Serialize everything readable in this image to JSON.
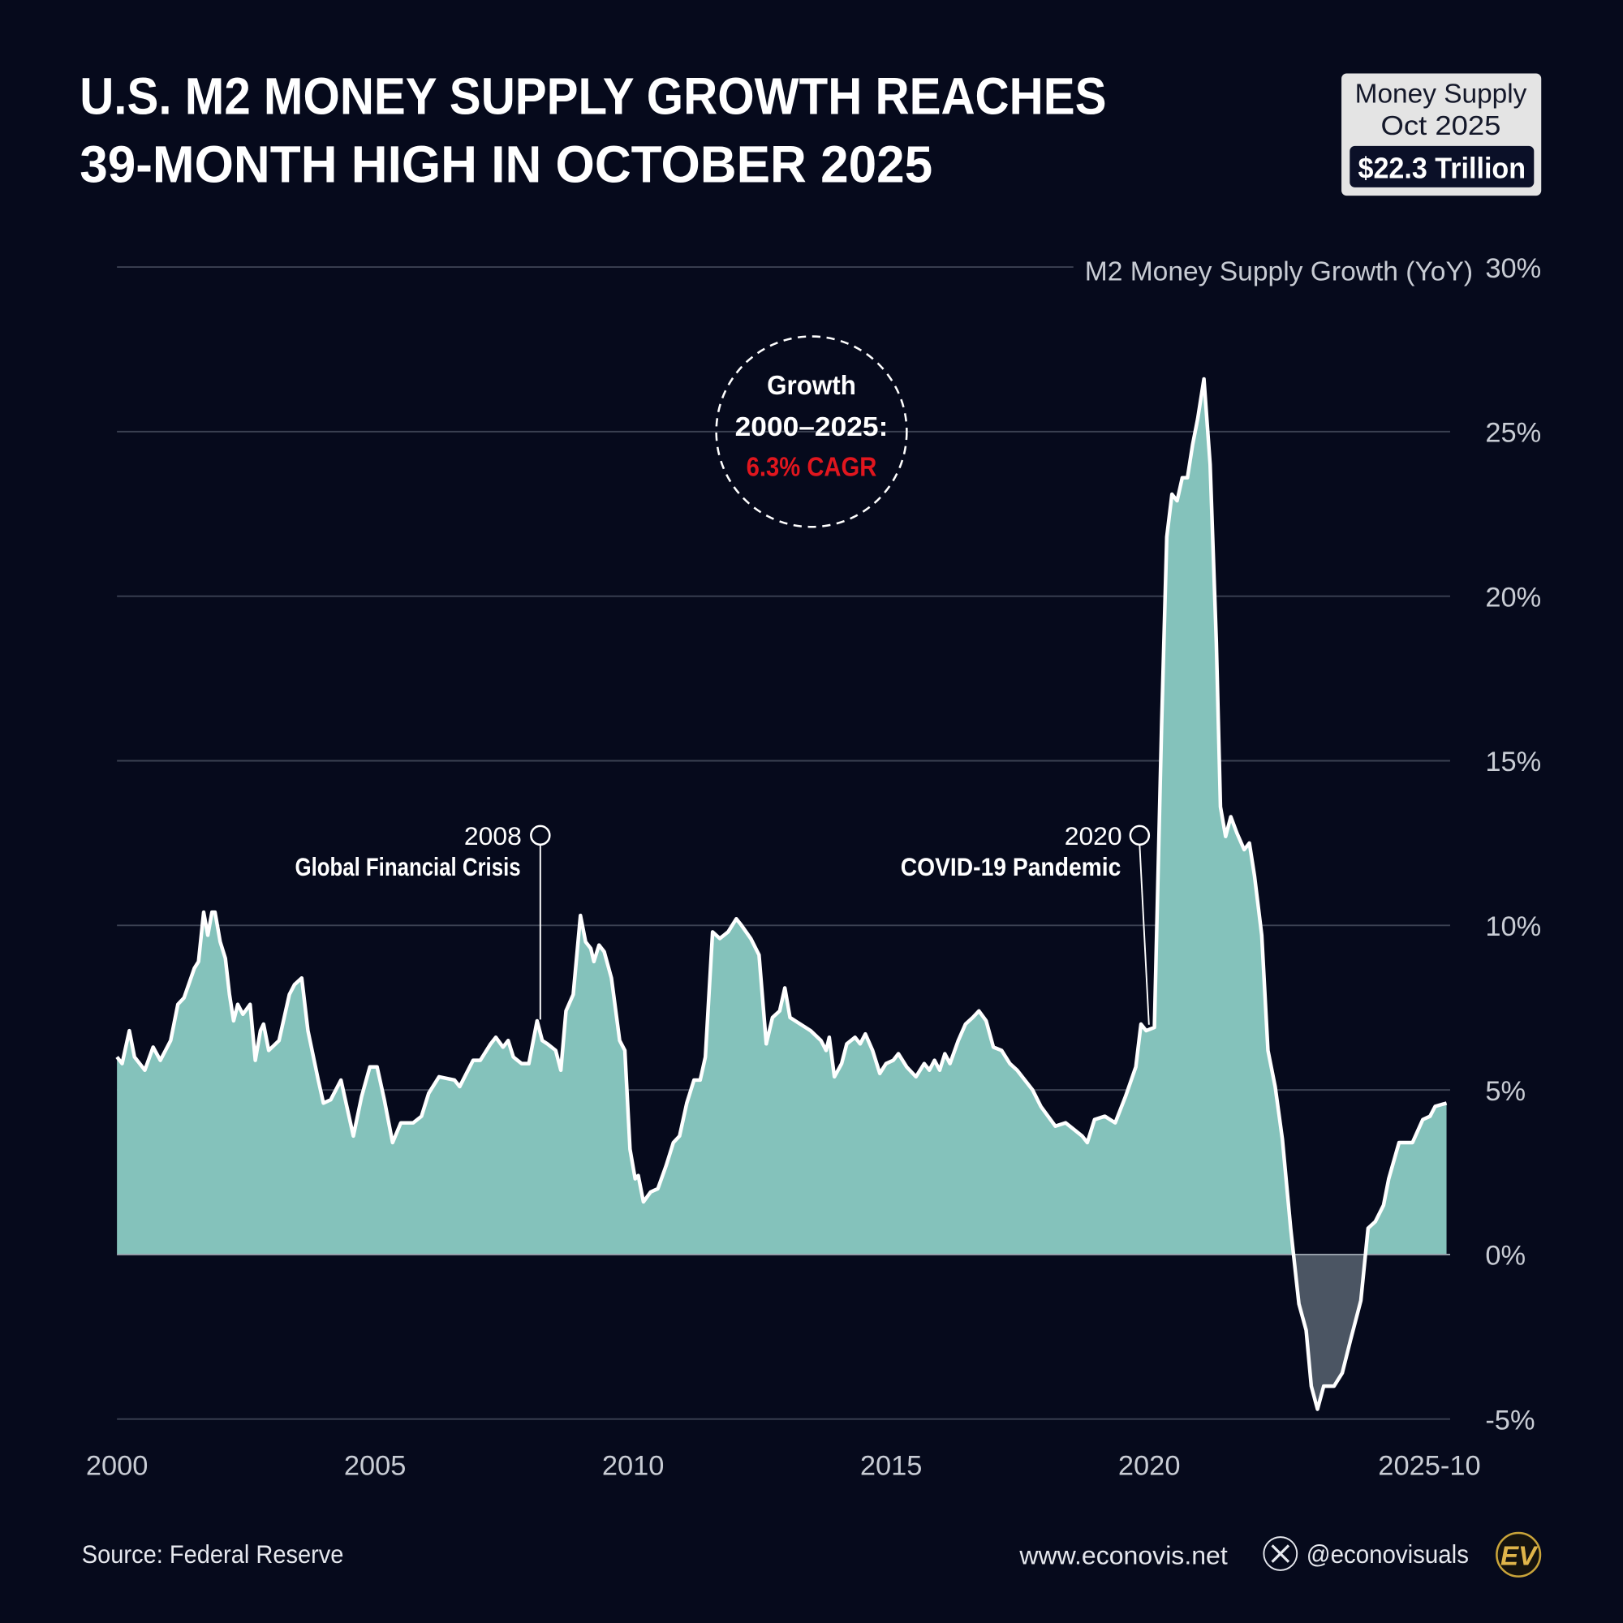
{
  "chart_data": {
    "type": "area",
    "title": [
      "U.S. M2 MONEY SUPPLY GROWTH REACHES",
      "39-MONTH HIGH IN OCTOBER 2025"
    ],
    "badge": {
      "lines": [
        "Money Supply",
        "Oct 2025"
      ],
      "value": "$22.3 Trillion"
    },
    "y_label": "M2 Money Supply Growth (YoY)",
    "cagr_note": {
      "lines": [
        "Growth",
        "2000–2025:"
      ],
      "highlight": "6.3% CAGR"
    },
    "annotations": [
      {
        "label": "2008",
        "text": "Global Financial Crisis"
      },
      {
        "label": "2020",
        "text": "COVID-19 Pandemic"
      }
    ],
    "source": "Source: Federal Reserve",
    "website": "www.econovis.net",
    "handle": "@econovisuals",
    "logo": "EV",
    "color": "#84c2bb",
    "negative_color": "#4b5563",
    "line_color": "#ffffff",
    "grid": true,
    "xlim": [
      2000,
      2025.83
    ],
    "xticks": [
      2000,
      2005,
      2010,
      2015,
      2020,
      {
        "value": 2025.83,
        "label": "2025-10"
      }
    ],
    "ylim": [
      -5,
      30
    ],
    "yticks": [
      {
        "value": -5,
        "label": "-5%"
      },
      {
        "value": 0,
        "label": "0%"
      },
      {
        "value": 5,
        "label": "5%"
      },
      {
        "value": 10,
        "label": "10%"
      },
      {
        "value": 15,
        "label": "15%"
      },
      {
        "value": 20,
        "label": "20%"
      },
      {
        "value": 25,
        "label": "25%"
      },
      {
        "value": 30,
        "label": "30%"
      }
    ],
    "x": [
      2000,
      2000.1,
      2000.24,
      2000.34,
      2000.54,
      2000.7,
      2000.84,
      2001.04,
      2001.18,
      2001.3,
      2001.5,
      2001.58,
      2001.68,
      2001.76,
      2001.84,
      2001.9,
      2002,
      2002.1,
      2002.18,
      2002.26,
      2002.34,
      2002.44,
      2002.58,
      2002.68,
      2002.78,
      2002.84,
      2002.94,
      2003.14,
      2003.34,
      2003.44,
      2003.58,
      2003.7,
      2003.9,
      2004,
      2004.14,
      2004.34,
      2004.58,
      2004.74,
      2004.9,
      2005.04,
      2005.18,
      2005.34,
      2005.5,
      2005.74,
      2005.9,
      2006.04,
      2006.24,
      2006.54,
      2006.64,
      2006.9,
      2007.04,
      2007.24,
      2007.34,
      2007.48,
      2007.58,
      2007.68,
      2007.84,
      2007.98,
      2008.14,
      2008.24,
      2008.34,
      2008.5,
      2008.6,
      2008.7,
      2008.84,
      2008.98,
      2009.08,
      2009.18,
      2009.24,
      2009.34,
      2009.44,
      2009.58,
      2009.74,
      2009.84,
      2009.94,
      2010.04,
      2010.1,
      2010.2,
      2010.34,
      2010.48,
      2010.64,
      2010.78,
      2010.9,
      2011.04,
      2011.18,
      2011.3,
      2011.4,
      2011.54,
      2011.68,
      2011.84,
      2012,
      2012.1,
      2012.28,
      2012.44,
      2012.58,
      2012.7,
      2012.84,
      2012.94,
      2013.04,
      2013.24,
      2013.44,
      2013.64,
      2013.74,
      2013.8,
      2013.9,
      2014.04,
      2014.14,
      2014.3,
      2014.4,
      2014.5,
      2014.64,
      2014.78,
      2014.9,
      2015.04,
      2015.14,
      2015.3,
      2015.48,
      2015.64,
      2015.74,
      2015.84,
      2015.94,
      2016.04,
      2016.14,
      2016.3,
      2016.44,
      2016.58,
      2016.7,
      2016.84,
      2016.98,
      2017.14,
      2017.3,
      2017.44,
      2017.64,
      2017.74,
      2017.9,
      2018.04,
      2018.18,
      2018.38,
      2018.54,
      2018.7,
      2018.8,
      2018.94,
      2019.14,
      2019.34,
      2019.54,
      2019.74,
      2019.84,
      2019.94,
      2020.1,
      2020.24,
      2020.34,
      2020.44,
      2020.54,
      2020.64,
      2020.74,
      2020.84,
      2020.94,
      2021.06,
      2021.18,
      2021.3,
      2021.38,
      2021.48,
      2021.58,
      2021.7,
      2021.84,
      2021.94,
      2022.04,
      2022.18,
      2022.3,
      2022.44,
      2022.58,
      2022.74,
      2022.9,
      2023.04,
      2023.14,
      2023.26,
      2023.38,
      2023.58,
      2023.74,
      2023.9,
      2024.1,
      2024.24,
      2024.38,
      2024.54,
      2024.64,
      2024.84,
      2025.1,
      2025.3,
      2025.44,
      2025.54,
      2025.76
    ],
    "values": [
      6.0,
      5.8,
      6.8,
      6.0,
      5.6,
      6.3,
      5.9,
      6.5,
      7.6,
      7.8,
      8.7,
      8.9,
      10.4,
      9.7,
      10.4,
      10.4,
      9.5,
      9.0,
      7.9,
      7.1,
      7.6,
      7.3,
      7.6,
      5.9,
      6.8,
      7.0,
      6.2,
      6.5,
      7.9,
      8.2,
      8.4,
      6.8,
      5.3,
      4.6,
      4.7,
      5.3,
      3.6,
      4.8,
      5.7,
      5.7,
      4.7,
      3.4,
      4.0,
      4.0,
      4.2,
      4.9,
      5.4,
      5.3,
      5.1,
      5.9,
      5.9,
      6.4,
      6.6,
      6.3,
      6.5,
      6.0,
      5.8,
      5.8,
      7.1,
      6.5,
      6.4,
      6.2,
      5.6,
      7.4,
      7.9,
      10.3,
      9.5,
      9.3,
      8.9,
      9.4,
      9.2,
      8.4,
      6.5,
      6.2,
      3.2,
      2.3,
      2.4,
      1.6,
      1.9,
      2.0,
      2.7,
      3.4,
      3.6,
      4.6,
      5.3,
      5.3,
      6.0,
      9.8,
      9.6,
      9.8,
      10.2,
      10.0,
      9.6,
      9.1,
      6.4,
      7.2,
      7.4,
      8.1,
      7.2,
      7.0,
      6.8,
      6.5,
      6.2,
      6.6,
      5.4,
      5.8,
      6.4,
      6.6,
      6.4,
      6.7,
      6.2,
      5.5,
      5.8,
      5.9,
      6.1,
      5.7,
      5.4,
      5.8,
      5.6,
      5.9,
      5.6,
      6.1,
      5.8,
      6.5,
      7.0,
      7.2,
      7.4,
      7.1,
      6.3,
      6.2,
      5.8,
      5.6,
      5.2,
      5.0,
      4.5,
      4.2,
      3.9,
      4.0,
      3.8,
      3.6,
      3.4,
      4.1,
      4.2,
      4.0,
      4.8,
      5.7,
      7.0,
      6.8,
      6.9,
      16.1,
      21.8,
      23.1,
      22.9,
      23.6,
      23.6,
      24.6,
      25.4,
      26.6,
      24.0,
      18.6,
      13.6,
      12.7,
      13.3,
      12.8,
      12.3,
      12.5,
      11.5,
      9.7,
      6.2,
      5.1,
      3.5,
      0.8,
      -1.5,
      -2.3,
      -4.0,
      -4.7,
      -4.0,
      -4.0,
      -3.6,
      -2.6,
      -1.4,
      0.8,
      1.0,
      1.5,
      2.3,
      3.4,
      3.4,
      4.1,
      4.2,
      4.5,
      4.6
    ]
  }
}
